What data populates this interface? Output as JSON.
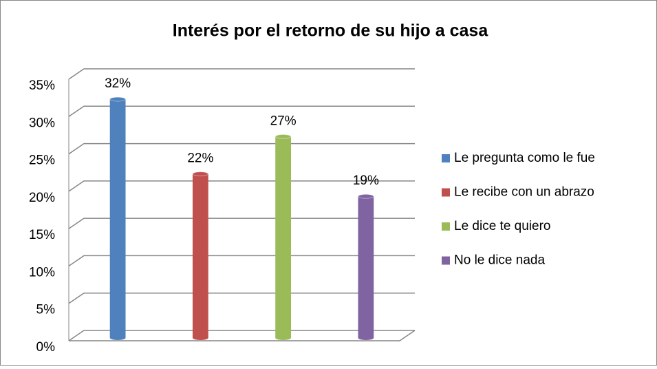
{
  "chart_data": {
    "type": "bar",
    "title": "Interés  por el retorno de su hijo a casa",
    "series": [
      {
        "name": "Le pregunta como le fue",
        "color": "#4f81bd",
        "values": [
          32
        ],
        "value_labels": [
          "32%"
        ]
      },
      {
        "name": "Le recibe con un abrazo",
        "color": "#c0504d",
        "values": [
          22
        ],
        "value_labels": [
          "22%"
        ]
      },
      {
        "name": "Le dice te quiero",
        "color": "#9bbb59",
        "values": [
          27
        ],
        "value_labels": [
          "27%"
        ]
      },
      {
        "name": "No le dice nada",
        "color": "#8064a2",
        "values": [
          19
        ],
        "value_labels": [
          "19%"
        ]
      }
    ],
    "ylim": [
      0,
      35
    ],
    "yticks": [
      {
        "value": 0,
        "label": "0%"
      },
      {
        "value": 5,
        "label": "5%"
      },
      {
        "value": 10,
        "label": "10%"
      },
      {
        "value": 15,
        "label": "15%"
      },
      {
        "value": 20,
        "label": "20%"
      },
      {
        "value": 25,
        "label": "25%"
      },
      {
        "value": 30,
        "label": "30%"
      },
      {
        "value": 35,
        "label": "35%"
      }
    ],
    "grid": true,
    "legend": "right"
  }
}
